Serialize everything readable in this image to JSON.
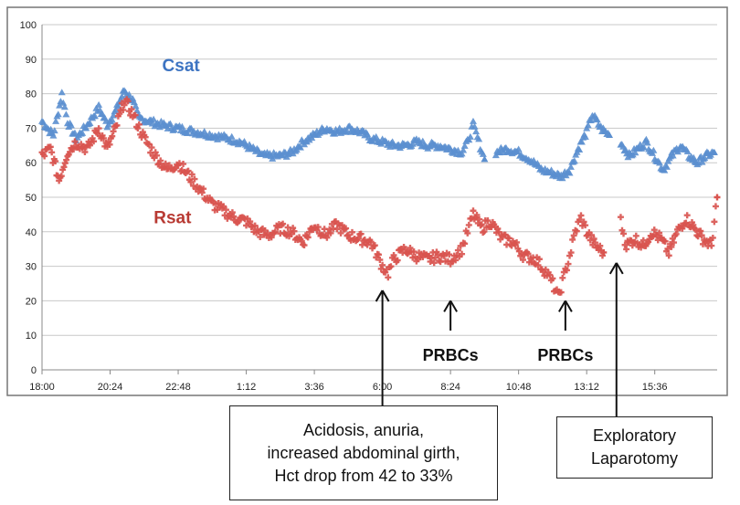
{
  "chart_data": {
    "type": "scatter",
    "title": "",
    "xlabel": "",
    "ylabel": "",
    "ylim": [
      0,
      100
    ],
    "yticks": [
      0,
      10,
      20,
      30,
      40,
      50,
      60,
      70,
      80,
      90,
      100
    ],
    "x_unit": "hours since 18:00",
    "xlim": [
      0,
      23.8
    ],
    "xticks": [
      {
        "label": "18:00",
        "x": 0
      },
      {
        "label": "20:24",
        "x": 2.4
      },
      {
        "label": "22:48",
        "x": 4.8
      },
      {
        "label": "1:12",
        "x": 7.2
      },
      {
        "label": "3:36",
        "x": 9.6
      },
      {
        "label": "6:00",
        "x": 12.0
      },
      {
        "label": "8:24",
        "x": 14.4
      },
      {
        "label": "10:48",
        "x": 16.8
      },
      {
        "label": "13:12",
        "x": 19.2
      },
      {
        "label": "15:36",
        "x": 21.6
      }
    ],
    "grid": true,
    "series": [
      {
        "name": "Csat",
        "color": "#5b8fcf",
        "marker": "triangle",
        "segments": [
          [
            [
              0,
              72
            ],
            [
              0.4,
              68
            ],
            [
              0.7,
              80
            ],
            [
              0.9,
              72
            ],
            [
              1.2,
              67
            ],
            [
              1.6,
              71
            ],
            [
              2.0,
              76
            ],
            [
              2.3,
              71
            ],
            [
              2.6,
              75
            ],
            [
              2.9,
              81
            ],
            [
              3.2,
              78
            ],
            [
              3.4,
              73
            ],
            [
              3.8,
              72
            ],
            [
              4.2,
              71
            ],
            [
              4.8,
              70
            ],
            [
              5.4,
              69
            ],
            [
              6.0,
              68
            ],
            [
              6.6,
              67
            ],
            [
              7.0,
              66
            ],
            [
              7.4,
              64
            ],
            [
              7.8,
              62
            ],
            [
              8.4,
              62
            ],
            [
              8.8,
              63
            ],
            [
              9.2,
              66
            ],
            [
              9.6,
              68
            ],
            [
              10.0,
              70
            ],
            [
              10.4,
              69
            ],
            [
              10.8,
              70
            ],
            [
              11.2,
              69
            ],
            [
              11.6,
              67
            ],
            [
              12.0,
              66
            ],
            [
              12.4,
              65
            ],
            [
              12.8,
              65
            ],
            [
              13.2,
              66
            ],
            [
              13.6,
              65
            ],
            [
              14.0,
              65
            ],
            [
              14.4,
              64
            ],
            [
              14.8,
              63
            ],
            [
              15.0,
              66
            ],
            [
              15.2,
              71
            ],
            [
              15.4,
              66
            ],
            [
              15.6,
              61
            ]
          ],
          [
            [
              16.0,
              63
            ],
            [
              16.4,
              64
            ],
            [
              16.8,
              63
            ],
            [
              17.2,
              61
            ],
            [
              17.6,
              58
            ],
            [
              18.0,
              57
            ],
            [
              18.3,
              56
            ],
            [
              18.6,
              58
            ],
            [
              18.9,
              64
            ],
            [
              19.2,
              69
            ],
            [
              19.4,
              74
            ],
            [
              19.7,
              70
            ],
            [
              20.0,
              68
            ]
          ],
          [
            [
              20.4,
              66
            ],
            [
              20.7,
              62
            ],
            [
              21.0,
              64
            ],
            [
              21.3,
              66
            ],
            [
              21.6,
              62
            ],
            [
              21.9,
              58
            ],
            [
              22.2,
              62
            ],
            [
              22.5,
              65
            ],
            [
              22.8,
              62
            ],
            [
              23.1,
              60
            ],
            [
              23.4,
              62
            ],
            [
              23.7,
              63
            ]
          ]
        ]
      },
      {
        "name": "Rsat",
        "color": "#d9544f",
        "marker": "plus",
        "segments": [
          [
            [
              0,
              62
            ],
            [
              0.3,
              64
            ],
            [
              0.6,
              55
            ],
            [
              0.9,
              63
            ],
            [
              1.2,
              66
            ],
            [
              1.6,
              64
            ],
            [
              2.0,
              70
            ],
            [
              2.3,
              64
            ],
            [
              2.6,
              70
            ],
            [
              2.9,
              78
            ],
            [
              3.2,
              74
            ],
            [
              3.6,
              67
            ],
            [
              4.0,
              62
            ],
            [
              4.4,
              58
            ],
            [
              4.8,
              60
            ],
            [
              5.2,
              56
            ],
            [
              5.6,
              52
            ],
            [
              6.0,
              48
            ],
            [
              6.4,
              46
            ],
            [
              6.8,
              44
            ],
            [
              7.2,
              43
            ],
            [
              7.6,
              40
            ],
            [
              8.0,
              39
            ],
            [
              8.4,
              41
            ],
            [
              8.8,
              40
            ],
            [
              9.2,
              37
            ],
            [
              9.6,
              42
            ],
            [
              10.0,
              39
            ],
            [
              10.4,
              42
            ],
            [
              10.8,
              39
            ],
            [
              11.2,
              38
            ],
            [
              11.6,
              37
            ],
            [
              12.0,
              30
            ],
            [
              12.2,
              28
            ],
            [
              12.4,
              32
            ],
            [
              12.8,
              35
            ],
            [
              13.2,
              33
            ],
            [
              13.6,
              32
            ],
            [
              14.0,
              33
            ],
            [
              14.4,
              32
            ],
            [
              14.8,
              35
            ],
            [
              15.0,
              40
            ],
            [
              15.2,
              45
            ],
            [
              15.5,
              41
            ],
            [
              15.8,
              43
            ],
            [
              16.2,
              38
            ],
            [
              16.6,
              37
            ],
            [
              17.0,
              33
            ],
            [
              17.4,
              32
            ],
            [
              17.8,
              28
            ],
            [
              18.0,
              25
            ],
            [
              18.2,
              21
            ],
            [
              18.4,
              27
            ],
            [
              18.6,
              33
            ],
            [
              18.8,
              40
            ],
            [
              19.0,
              44
            ],
            [
              19.2,
              40
            ],
            [
              19.5,
              36
            ],
            [
              19.8,
              34
            ]
          ],
          [
            [
              20.4,
              43
            ],
            [
              20.6,
              36
            ],
            [
              20.9,
              38
            ],
            [
              21.2,
              36
            ],
            [
              21.5,
              40
            ],
            [
              21.8,
              38
            ],
            [
              22.1,
              34
            ],
            [
              22.4,
              40
            ],
            [
              22.7,
              44
            ],
            [
              23.0,
              41
            ],
            [
              23.3,
              38
            ],
            [
              23.6,
              36
            ],
            [
              23.8,
              50
            ]
          ]
        ]
      }
    ],
    "labels": [
      {
        "text": "Csat",
        "series": "Csat",
        "x": 4.9,
        "y": 86.5
      },
      {
        "text": "Rsat",
        "series": "Rsat",
        "x": 4.6,
        "y": 42.5
      }
    ],
    "annotations": [
      {
        "id": "acidosis",
        "x": 12.0,
        "y": 23,
        "text": ""
      },
      {
        "id": "prbc1",
        "x": 14.4,
        "y": 20,
        "text": "PRBCs"
      },
      {
        "id": "prbc2",
        "x": 18.45,
        "y": 20,
        "text": "PRBCs"
      },
      {
        "id": "laparotomy",
        "x": 20.25,
        "y": 31,
        "text": ""
      }
    ],
    "callouts": {
      "acidosis": [
        "Acidosis, anuria,",
        "increased abdominal girth,",
        "Hct drop from 42 to 33%"
      ],
      "laparotomy": [
        "Exploratory",
        "Laparotomy"
      ]
    }
  }
}
